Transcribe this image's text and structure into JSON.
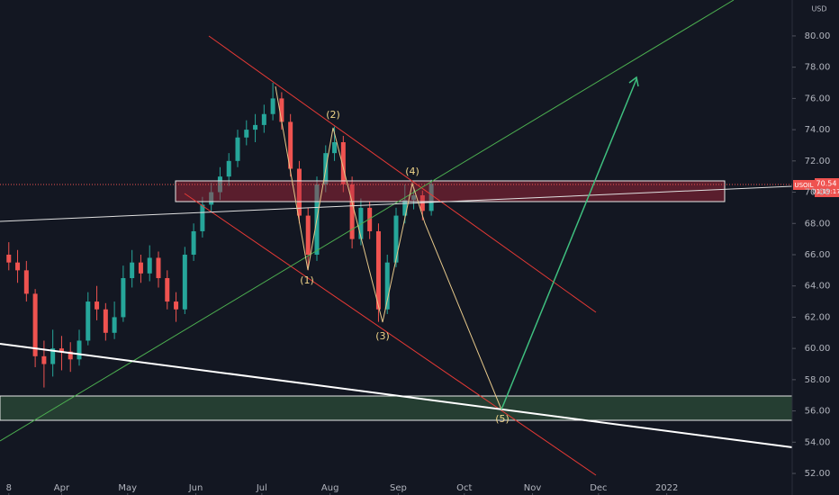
{
  "chart_data": {
    "type": "candlestick",
    "currency": "USD",
    "symbol": "USOIL",
    "last_price_label": "70.54",
    "countdown": "01:19:17",
    "up_color": "#26a69a",
    "down_color": "#ef5350",
    "x": [
      67,
      71,
      75,
      79,
      83,
      87,
      91,
      95,
      99,
      103,
      107,
      111,
      115,
      119,
      123,
      127,
      131,
      135,
      139,
      143,
      147,
      151,
      155,
      159,
      163,
      167,
      171,
      175,
      179,
      183,
      187,
      191,
      195,
      199,
      203,
      207,
      211,
      215,
      219,
      223,
      227,
      231,
      235,
      239,
      243,
      247,
      251,
      255,
      259
    ],
    "open": [
      66.0,
      65.5,
      65.0,
      63.5,
      59.5,
      59.0,
      60.0,
      59.8,
      59.3,
      60.5,
      63.0,
      62.5,
      61.0,
      62.0,
      64.5,
      65.5,
      64.8,
      65.8,
      64.5,
      63.0,
      62.5,
      66.0,
      67.5,
      69.2,
      70.0,
      71.0,
      72.0,
      73.5,
      74.0,
      74.3,
      75.0,
      76.0,
      74.5,
      71.5,
      68.5,
      66.0,
      70.5,
      72.5,
      73.2,
      70.5,
      67.0,
      69.0,
      67.5,
      62.5,
      65.5,
      68.5,
      69.5,
      69.8,
      68.8
    ],
    "high": [
      66.8,
      66.3,
      65.6,
      63.8,
      60.5,
      61.2,
      60.8,
      60.4,
      61.2,
      63.6,
      64.0,
      62.9,
      63.0,
      65.3,
      66.3,
      66.0,
      66.6,
      66.2,
      65.0,
      63.6,
      66.5,
      68.0,
      69.7,
      70.6,
      71.6,
      72.5,
      74.0,
      74.6,
      75.0,
      75.6,
      77.0,
      76.4,
      75.0,
      72.0,
      69.0,
      71.0,
      73.0,
      74.2,
      73.6,
      71.0,
      69.6,
      69.4,
      68.0,
      66.0,
      69.0,
      70.5,
      70.3,
      70.1,
      70.8
    ],
    "low": [
      65.0,
      64.2,
      63.0,
      58.8,
      57.5,
      58.2,
      58.6,
      58.5,
      58.9,
      60.2,
      61.8,
      60.5,
      60.6,
      61.7,
      63.9,
      64.2,
      64.3,
      63.9,
      62.5,
      61.7,
      62.2,
      65.6,
      67.1,
      68.7,
      69.5,
      70.4,
      71.6,
      73.0,
      73.2,
      73.8,
      74.6,
      74.0,
      71.0,
      68.0,
      65.0,
      65.6,
      70.0,
      72.0,
      70.0,
      66.4,
      66.6,
      67.0,
      61.7,
      62.2,
      65.2,
      68.0,
      68.9,
      68.2,
      68.5
    ],
    "close": [
      65.5,
      65.0,
      63.5,
      59.5,
      59.0,
      60.0,
      59.8,
      59.3,
      60.5,
      63.0,
      62.5,
      61.0,
      62.0,
      64.5,
      65.5,
      64.8,
      65.8,
      64.5,
      63.0,
      62.5,
      66.0,
      67.5,
      69.2,
      70.0,
      71.0,
      72.0,
      73.5,
      74.0,
      74.3,
      75.0,
      76.0,
      74.5,
      71.5,
      68.5,
      66.0,
      70.5,
      72.5,
      73.2,
      70.5,
      67.0,
      69.0,
      67.5,
      62.5,
      65.5,
      68.5,
      69.5,
      69.8,
      68.8,
      70.54
    ],
    "xlim": [
      63,
      423
    ],
    "ylim": [
      50.62,
      82.3
    ],
    "xticks": [
      {
        "value": 67,
        "label": "8"
      },
      {
        "value": 91,
        "label": "Apr"
      },
      {
        "value": 121,
        "label": "May"
      },
      {
        "value": 152,
        "label": "Jun"
      },
      {
        "value": 182,
        "label": "Jul"
      },
      {
        "value": 213,
        "label": "Aug"
      },
      {
        "value": 244,
        "label": "Sep"
      },
      {
        "value": 274,
        "label": "Oct"
      },
      {
        "value": 305,
        "label": "Nov"
      },
      {
        "value": 335,
        "label": "Dec"
      },
      {
        "value": 366,
        "label": "2022"
      }
    ],
    "yticks": [
      {
        "value": 52,
        "label": "52.00"
      },
      {
        "value": 54,
        "label": "54.00"
      },
      {
        "value": 56,
        "label": "56.00"
      },
      {
        "value": 58,
        "label": "58.00"
      },
      {
        "value": 60,
        "label": "60.00"
      },
      {
        "value": 62,
        "label": "62.00"
      },
      {
        "value": 64,
        "label": "64.00"
      },
      {
        "value": 66,
        "label": "66.00"
      },
      {
        "value": 68,
        "label": "68.00"
      },
      {
        "value": 70,
        "label": "70.00"
      },
      {
        "value": 72,
        "label": "72.00"
      },
      {
        "value": 74,
        "label": "74.00"
      },
      {
        "value": 76,
        "label": "76.00"
      },
      {
        "value": 78,
        "label": "78.00"
      },
      {
        "value": 80,
        "label": "80.00"
      }
    ],
    "annotations": [
      "(1)",
      "(2)",
      "(3)",
      "(4)",
      "(5)"
    ]
  }
}
